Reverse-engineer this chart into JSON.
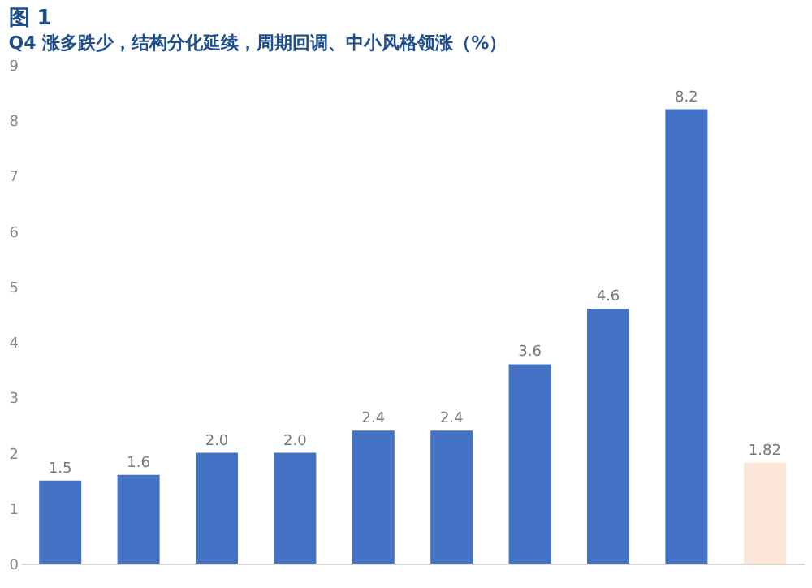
{
  "chart_data": {
    "type": "bar",
    "title": "图 1",
    "subtitle": "Q4 涨多跌少，结构分化延续，周期回调、中小风格领涨（%）",
    "categories": [
      null,
      null,
      null,
      null,
      null,
      null,
      null,
      null,
      null,
      null
    ],
    "values": [
      1.5,
      1.6,
      2.0,
      2.0,
      2.4,
      2.4,
      3.6,
      4.6,
      8.2,
      1.82
    ],
    "colors": [
      "#4472c4",
      "#4472c4",
      "#4472c4",
      "#4472c4",
      "#4472c4",
      "#4472c4",
      "#4472c4",
      "#4472c4",
      "#4472c4",
      "#fbe5d6"
    ],
    "value_labels": [
      "1.5",
      "1.6",
      "2.0",
      "2.0",
      "2.4",
      "2.4",
      "3.6",
      "4.6",
      "8.2",
      "1.82"
    ],
    "ylim": [
      0,
      9
    ],
    "yticks": [
      0,
      1,
      2,
      3,
      4,
      5,
      6,
      7,
      8,
      9
    ],
    "grid": false
  }
}
